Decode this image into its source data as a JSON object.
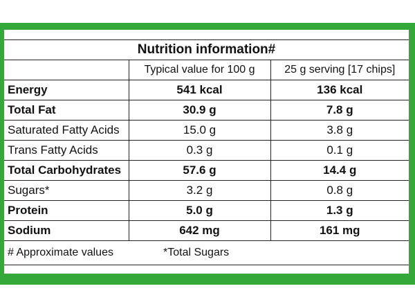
{
  "title": "Nutrition information#",
  "columns": [
    "",
    "Typical value for 100 g",
    "25 g serving [17 chips]"
  ],
  "rows": [
    {
      "nutrient": "Energy",
      "per100g": "541 kcal",
      "perServing": "136 kcal"
    },
    {
      "nutrient": "Total Fat",
      "per100g": "30.9 g",
      "perServing": "7.8 g"
    },
    {
      "nutrient": "Saturated Fatty Acids",
      "per100g": "15.0 g",
      "perServing": "3.8 g"
    },
    {
      "nutrient": "Trans Fatty Acids",
      "per100g": "0.3 g",
      "perServing": "0.1 g"
    },
    {
      "nutrient": "Total Carbohydrates",
      "per100g": "57.6 g",
      "perServing": "14.4 g"
    },
    {
      "nutrient": "Sugars*",
      "per100g": "3.2 g",
      "perServing": "0.8 g"
    },
    {
      "nutrient": "Protein",
      "per100g": "5.0 g",
      "perServing": "1.3 g"
    },
    {
      "nutrient": "Sodium",
      "per100g": "642 mg",
      "perServing": "161 mg"
    }
  ],
  "footnotes": {
    "approx": "# Approximate values",
    "sugars": "*Total Sugars"
  },
  "colors": {
    "border_green": "#35a83a",
    "text": "#111111"
  }
}
